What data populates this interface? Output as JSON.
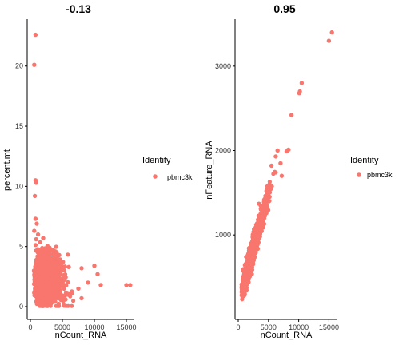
{
  "chart_data": [
    {
      "type": "scatter",
      "title": "-0.13",
      "xlabel": "nCount_RNA",
      "ylabel": "percent.mt",
      "xlim": [
        0,
        16000
      ],
      "ylim": [
        0,
        23.5
      ],
      "x_ticks": [
        0,
        5000,
        10000,
        15000
      ],
      "y_ticks": [
        0,
        5,
        10,
        15,
        20
      ],
      "grid": false,
      "legend": {
        "title": "Identity",
        "entries": [
          "pbmc3k"
        ],
        "placement": "right"
      },
      "color": "#F8766D",
      "points": [
        {
          "x": 800,
          "y": 22.6
        },
        {
          "x": 600,
          "y": 20.1
        },
        {
          "x": 800,
          "y": 10.5
        },
        {
          "x": 900,
          "y": 10.3
        },
        {
          "x": 700,
          "y": 9.2
        },
        {
          "x": 800,
          "y": 7.3
        },
        {
          "x": 1000,
          "y": 6.9
        },
        {
          "x": 600,
          "y": 6.3
        },
        {
          "x": 1200,
          "y": 6.0
        },
        {
          "x": 900,
          "y": 5.6
        },
        {
          "x": 2000,
          "y": 5.7
        },
        {
          "x": 3000,
          "y": 4.9
        },
        {
          "x": 5000,
          "y": 3.3
        },
        {
          "x": 6000,
          "y": 3.3
        },
        {
          "x": 8000,
          "y": 3.2
        },
        {
          "x": 10000,
          "y": 3.4
        },
        {
          "x": 10500,
          "y": 2.7
        },
        {
          "x": 9000,
          "y": 2.0
        },
        {
          "x": 11000,
          "y": 1.8
        },
        {
          "x": 7500,
          "y": 1.5
        },
        {
          "x": 15000,
          "y": 1.8
        },
        {
          "x": 15600,
          "y": 1.8
        },
        {
          "x": 6500,
          "y": 1.1
        },
        {
          "x": 5500,
          "y": 0.6
        },
        {
          "x": 8000,
          "y": 0.7
        }
      ],
      "cloud": {
        "x_range": [
          500,
          7000
        ],
        "y_range": [
          0,
          5.5
        ],
        "n": 2000,
        "mode": "mt"
      }
    },
    {
      "type": "scatter",
      "title": "0.95",
      "xlabel": "nCount_RNA",
      "ylabel": "nFeature_RNA",
      "xlim": [
        0,
        16000
      ],
      "ylim": [
        150,
        3500
      ],
      "x_ticks": [
        0,
        5000,
        10000,
        15000
      ],
      "y_ticks": [
        1000,
        2000,
        3000
      ],
      "grid": false,
      "legend": {
        "title": "Identity",
        "entries": [
          "pbmc3k"
        ],
        "placement": "right"
      },
      "color": "#F8766D",
      "points": [
        {
          "x": 15500,
          "y": 3400
        },
        {
          "x": 15000,
          "y": 3300
        },
        {
          "x": 10500,
          "y": 2800
        },
        {
          "x": 10200,
          "y": 2700
        },
        {
          "x": 10100,
          "y": 2680
        },
        {
          "x": 8800,
          "y": 2420
        },
        {
          "x": 8300,
          "y": 2010
        },
        {
          "x": 8000,
          "y": 1990
        },
        {
          "x": 6500,
          "y": 2000
        },
        {
          "x": 6200,
          "y": 1930
        },
        {
          "x": 7000,
          "y": 1850
        },
        {
          "x": 7200,
          "y": 1700
        },
        {
          "x": 5500,
          "y": 1820
        }
      ],
      "cloud": {
        "x_range": [
          500,
          7500
        ],
        "y_range": [
          220,
          1850
        ],
        "n": 2000,
        "mode": "feature"
      }
    }
  ]
}
